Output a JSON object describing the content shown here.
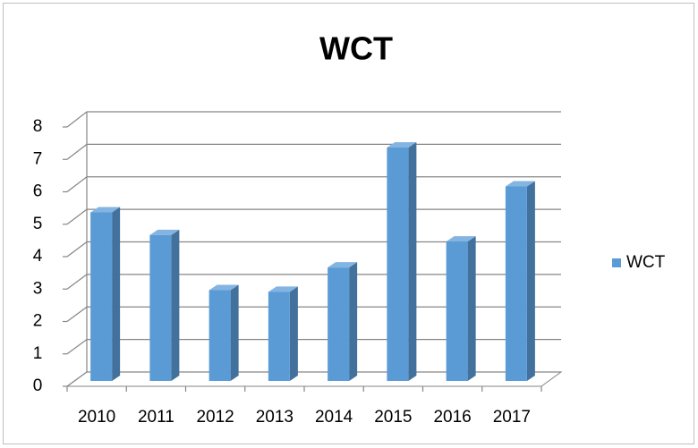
{
  "chart_data": {
    "type": "bar3d",
    "title": "WCT",
    "categories": [
      "2010",
      "2011",
      "2012",
      "2013",
      "2014",
      "2015",
      "2016",
      "2017"
    ],
    "series": [
      {
        "name": "WCT",
        "color": "#5b9bd5",
        "values": [
          5.2,
          4.5,
          2.8,
          2.75,
          3.5,
          7.2,
          4.3,
          6
        ]
      }
    ],
    "ylim": [
      0,
      8
    ],
    "yticks": [
      0,
      1,
      2,
      3,
      4,
      5,
      6,
      7,
      8
    ],
    "grid": true,
    "legend": "right"
  }
}
